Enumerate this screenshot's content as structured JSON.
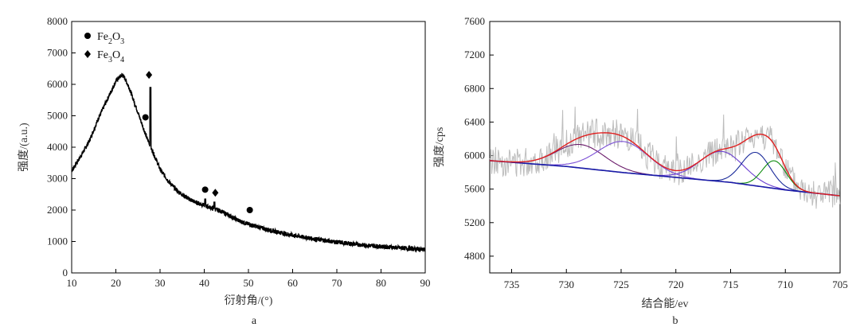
{
  "chart_data": [
    {
      "id": "a",
      "type": "line",
      "panel_label": "a",
      "xlabel": "衍射角/(°)",
      "ylabel": "强度/(a.u.)",
      "xlim": [
        10,
        90
      ],
      "ylim": [
        0,
        8000
      ],
      "xticks": [
        10,
        20,
        30,
        40,
        50,
        60,
        70,
        80,
        90
      ],
      "yticks": [
        0,
        1000,
        2000,
        3000,
        4000,
        5000,
        6000,
        7000,
        8000
      ],
      "legend": [
        {
          "symbol": "circle",
          "base": "Fe",
          "sub1": "2",
          "mid": "O",
          "sub2": "3"
        },
        {
          "symbol": "diamond",
          "base": "Fe",
          "sub1": "3",
          "mid": "O",
          "sub2": "4"
        }
      ],
      "series": [
        {
          "color": "#000000",
          "x": [
            10,
            12,
            14,
            16,
            18,
            19,
            20,
            21,
            21.5,
            22,
            23,
            24,
            25,
            26,
            26.5,
            27,
            27.5,
            27.8,
            28.2,
            29,
            30,
            32,
            34,
            36,
            38,
            40,
            42,
            44,
            46,
            48,
            50,
            55,
            60,
            65,
            70,
            75,
            80,
            85,
            90
          ],
          "y": [
            3250,
            3700,
            4200,
            4900,
            5500,
            5800,
            6100,
            6250,
            6300,
            6200,
            5900,
            5500,
            5100,
            4700,
            4500,
            4300,
            4150,
            4000,
            3900,
            3650,
            3300,
            2900,
            2600,
            2400,
            2250,
            2150,
            2050,
            1950,
            1800,
            1650,
            1550,
            1350,
            1200,
            1080,
            980,
            900,
            840,
            790,
            740
          ]
        }
      ],
      "peaks": [
        {
          "x": 27.8,
          "y": 5900
        },
        {
          "x": 40.2,
          "y": 2350
        },
        {
          "x": 42.3,
          "y": 2250
        }
      ],
      "markers": [
        {
          "symbol": "circle",
          "x": 26.7,
          "y": 4950
        },
        {
          "symbol": "diamond",
          "x": 27.5,
          "y": 6300
        },
        {
          "symbol": "circle",
          "x": 40.2,
          "y": 2650
        },
        {
          "symbol": "diamond",
          "x": 42.5,
          "y": 2550
        },
        {
          "symbol": "circle",
          "x": 50.3,
          "y": 2000
        }
      ]
    },
    {
      "id": "b",
      "type": "line",
      "panel_label": "b",
      "xlabel": "结合能/ev",
      "ylabel": "强度/cps",
      "xlim": [
        737,
        705
      ],
      "ylim": [
        4600,
        7600
      ],
      "xticks": [
        735,
        730,
        725,
        720,
        715,
        710,
        705
      ],
      "yticks": [
        4800,
        5200,
        5600,
        6000,
        6400,
        6800,
        7200,
        7600
      ],
      "raw_series": {
        "color": "#bdbdbd",
        "amplitude": 220,
        "x_range": [
          737,
          705
        ]
      },
      "background": {
        "color": "#1a1aa8",
        "x": [
          737,
          730,
          725,
          720,
          715,
          710,
          705
        ],
        "y": [
          5940,
          5870,
          5800,
          5740,
          5680,
          5590,
          5520
        ]
      },
      "components": [
        {
          "color": "#6a1a6a",
          "center": 728.7,
          "height": 280,
          "width": 2.2
        },
        {
          "color": "#7b4fd6",
          "center": 724.8,
          "height": 370,
          "width": 2.3
        },
        {
          "color": "#6b3fd0",
          "center": 715.8,
          "height": 360,
          "width": 2.0
        },
        {
          "color": "#1a2a9a",
          "center": 712.7,
          "height": 400,
          "width": 1.3
        },
        {
          "color": "#0a8a0a",
          "center": 711.0,
          "height": 330,
          "width": 1.1
        }
      ],
      "envelope_color": "#e02020"
    }
  ]
}
